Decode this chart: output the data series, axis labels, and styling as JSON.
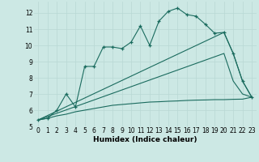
{
  "xlabel": "Humidex (Indice chaleur)",
  "background_color": "#cce8e4",
  "grid_color": "#b8d8d4",
  "line_color": "#1a6b5e",
  "xlim": [
    -0.5,
    23.5
  ],
  "ylim": [
    5,
    12.7
  ],
  "yticks": [
    5,
    6,
    7,
    8,
    9,
    10,
    11,
    12
  ],
  "xticks": [
    0,
    1,
    2,
    3,
    4,
    5,
    6,
    7,
    8,
    9,
    10,
    11,
    12,
    13,
    14,
    15,
    16,
    17,
    18,
    19,
    20,
    21,
    22,
    23
  ],
  "series": [
    {
      "x": [
        0,
        1,
        2,
        3,
        4,
        5,
        6,
        7,
        8,
        9,
        10,
        11,
        12,
        13,
        14,
        15,
        16,
        17,
        18,
        19,
        20,
        21,
        22,
        23
      ],
      "y": [
        5.4,
        5.5,
        6.0,
        7.0,
        6.2,
        8.7,
        8.7,
        9.9,
        9.9,
        9.8,
        10.2,
        11.2,
        10.0,
        11.5,
        12.1,
        12.3,
        11.9,
        11.8,
        11.3,
        10.75,
        10.8,
        9.5,
        7.8,
        6.8
      ],
      "marker": true
    },
    {
      "x": [
        0,
        20,
        21,
        22,
        23
      ],
      "y": [
        5.4,
        10.8,
        9.5,
        7.8,
        6.8
      ],
      "marker": false
    },
    {
      "x": [
        0,
        20,
        21,
        22,
        23
      ],
      "y": [
        5.4,
        9.5,
        7.8,
        7.0,
        6.8
      ],
      "marker": false
    },
    {
      "x": [
        0,
        1,
        2,
        3,
        4,
        5,
        6,
        7,
        8,
        9,
        10,
        11,
        12,
        13,
        14,
        15,
        16,
        17,
        18,
        19,
        20,
        21,
        22,
        23
      ],
      "y": [
        5.4,
        5.5,
        5.65,
        5.75,
        5.9,
        6.0,
        6.1,
        6.2,
        6.3,
        6.35,
        6.4,
        6.45,
        6.5,
        6.52,
        6.55,
        6.57,
        6.6,
        6.62,
        6.63,
        6.65,
        6.65,
        6.67,
        6.68,
        6.8
      ],
      "marker": false
    }
  ]
}
